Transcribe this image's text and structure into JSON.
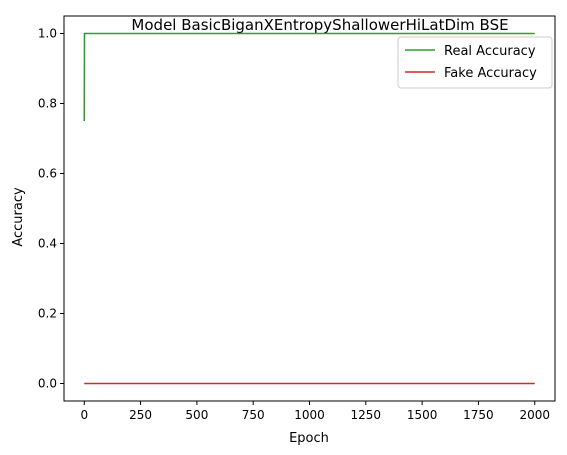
{
  "chart_data": {
    "type": "line",
    "title": "Model BasicBiganXEntropyShallowerHiLatDim BSE",
    "xlabel": "Epoch",
    "ylabel": "Accuracy",
    "xlim": [
      -90,
      2090
    ],
    "ylim": [
      -0.05,
      1.05
    ],
    "xticks": [
      0,
      250,
      500,
      750,
      1000,
      1250,
      1500,
      1750,
      2000
    ],
    "yticks": [
      0.0,
      0.2,
      0.4,
      0.6,
      0.8,
      1.0
    ],
    "xtick_labels": [
      "0",
      "250",
      "500",
      "750",
      "1000",
      "1250",
      "1500",
      "1750",
      "2000"
    ],
    "ytick_labels": [
      "0.0",
      "0.2",
      "0.4",
      "0.6",
      "0.8",
      "1.0"
    ],
    "grid": false,
    "legend_position": "top-right",
    "series": [
      {
        "name": "Real Accuracy",
        "color": "#2ca02c",
        "x": [
          0,
          1,
          2000
        ],
        "y": [
          0.75,
          1.0,
          1.0
        ]
      },
      {
        "name": "Fake Accuracy",
        "color": "#d62728",
        "x": [
          0,
          2000
        ],
        "y": [
          0.0,
          0.0
        ]
      }
    ]
  }
}
